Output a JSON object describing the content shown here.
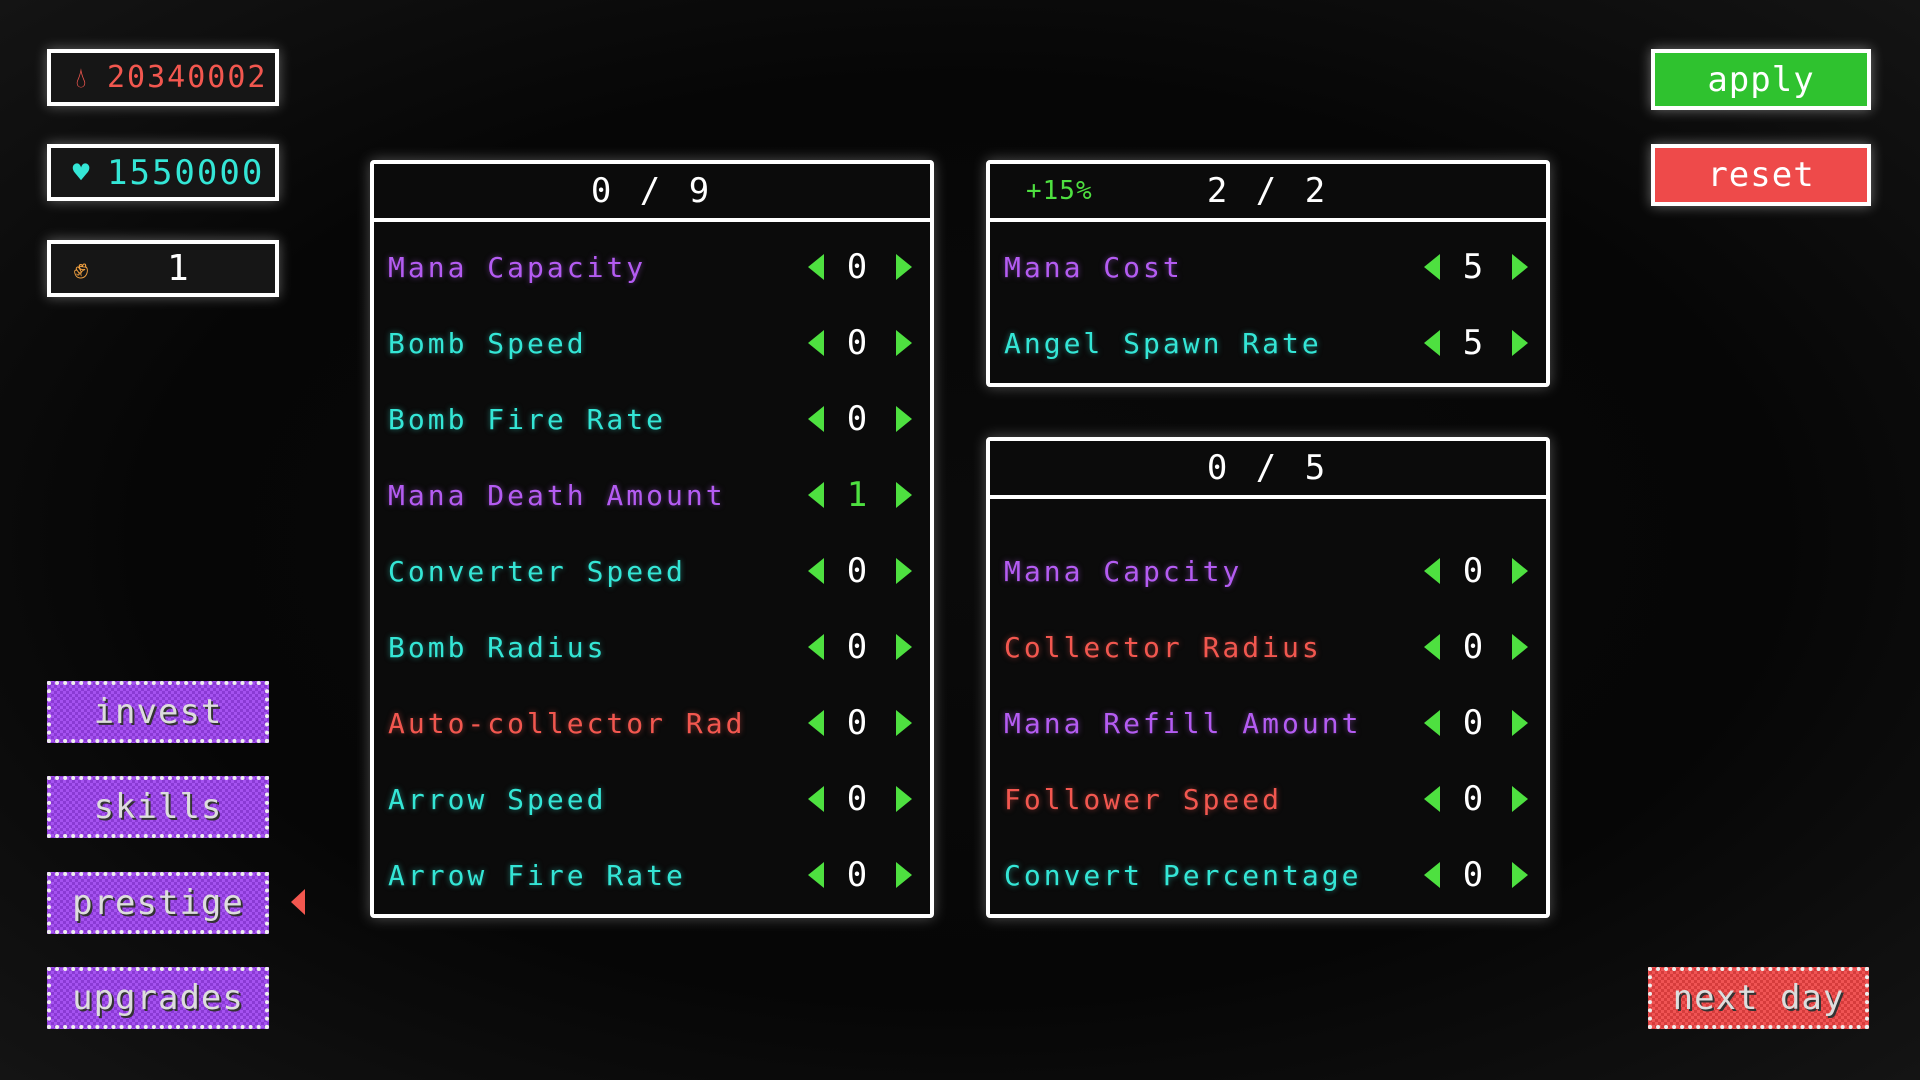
{
  "resources": {
    "blood": {
      "icon": "blood-drop-icon",
      "value": "20340002",
      "color": "#f2574f"
    },
    "hearts": {
      "icon": "heart-icon",
      "value": "1550000",
      "color": "#34e6d6"
    },
    "strength": {
      "icon": "flexed-arm-icon",
      "value": "1",
      "color": "#f0a040"
    }
  },
  "buttons": {
    "apply": "apply",
    "reset": "reset",
    "next_day": "next day"
  },
  "nav": [
    {
      "label": "invest"
    },
    {
      "label": "skills"
    },
    {
      "label": "prestige",
      "active": true
    },
    {
      "label": "upgrades"
    }
  ],
  "panels": [
    {
      "header": "0 / 9",
      "bonus": "",
      "rows": [
        {
          "label": "Mana Capacity",
          "value": "0",
          "color": "purple"
        },
        {
          "label": "Bomb Speed",
          "value": "0",
          "color": "cyan"
        },
        {
          "label": "Bomb Fire Rate",
          "value": "0",
          "color": "cyan"
        },
        {
          "label": "Mana Death Amount",
          "value": "1",
          "color": "purple",
          "highlight": true
        },
        {
          "label": "Converter Speed",
          "value": "0",
          "color": "cyan"
        },
        {
          "label": "Bomb Radius",
          "value": "0",
          "color": "cyan"
        },
        {
          "label": "Auto-collector Rad",
          "value": "0",
          "color": "red"
        },
        {
          "label": "Arrow Speed",
          "value": "0",
          "color": "cyan"
        },
        {
          "label": "Arrow Fire Rate",
          "value": "0",
          "color": "cyan"
        }
      ]
    },
    {
      "header": "2 / 2",
      "bonus": "+15%",
      "rows": [
        {
          "label": "Mana Cost",
          "value": "5",
          "color": "purple"
        },
        {
          "label": "Angel Spawn Rate",
          "value": "5",
          "color": "cyan"
        }
      ]
    },
    {
      "header": "0 / 5",
      "bonus": "",
      "rows": [
        {
          "label": "Mana Capcity",
          "value": "0",
          "color": "purple"
        },
        {
          "label": "Collector Radius",
          "value": "0",
          "color": "red"
        },
        {
          "label": "Mana Refill Amount",
          "value": "0",
          "color": "purple"
        },
        {
          "label": "Follower Speed",
          "value": "0",
          "color": "red"
        },
        {
          "label": "Convert Percentage",
          "value": "0",
          "color": "cyan"
        }
      ]
    }
  ],
  "colors": {
    "accent_green": "#4ee040",
    "apply": "#2fc22f",
    "reset": "#ee4a4a",
    "nav_purple": "#9a45e6"
  }
}
